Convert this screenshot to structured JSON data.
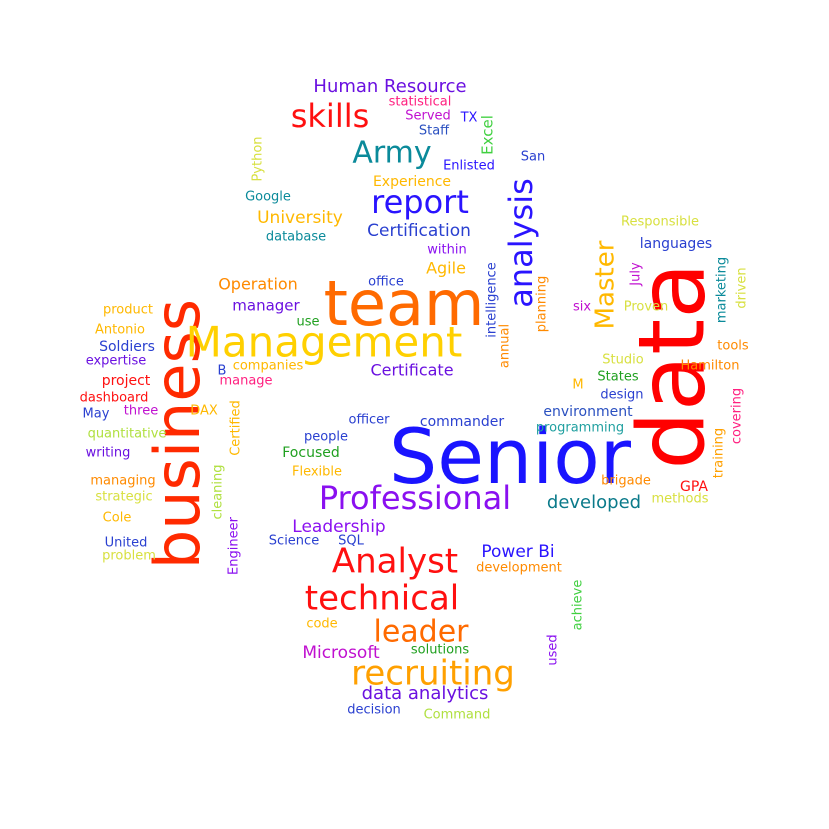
{
  "words": [
    {
      "text": "Senior",
      "color": "#1a14ff"
    },
    {
      "text": "data",
      "color": "#ff0000"
    },
    {
      "text": "team",
      "color": "#ff6a00"
    },
    {
      "text": "business",
      "color": "#ff2a00"
    },
    {
      "text": "Management",
      "color": "#ffd000"
    },
    {
      "text": "Professional",
      "color": "#8a10f0"
    },
    {
      "text": "technical",
      "color": "#ff1010"
    },
    {
      "text": "Analyst",
      "color": "#ff1010"
    },
    {
      "text": "recruiting",
      "color": "#ffa000"
    },
    {
      "text": "leader",
      "color": "#ff6a00"
    },
    {
      "text": "analysis",
      "color": "#2a14ff"
    },
    {
      "text": "report",
      "color": "#2a14ff"
    },
    {
      "text": "skills",
      "color": "#ff1010"
    },
    {
      "text": "Army",
      "color": "#0a8a9a"
    },
    {
      "text": "Master",
      "color": "#ffb800"
    },
    {
      "text": "data analytics",
      "color": "#6a10e0"
    },
    {
      "text": "Certification",
      "color": "#2a40d0"
    },
    {
      "text": "Human Resource",
      "color": "#6a10e0"
    },
    {
      "text": "University",
      "color": "#ffb800"
    },
    {
      "text": "Certificate",
      "color": "#6a10e0"
    },
    {
      "text": "Leadership",
      "color": "#8a10f0"
    },
    {
      "text": "developed",
      "color": "#0a7a8a"
    },
    {
      "text": "Power Bi",
      "color": "#2a14ff"
    },
    {
      "text": "Microsoft",
      "color": "#c010d0"
    },
    {
      "text": "Operation",
      "color": "#ff8a00"
    },
    {
      "text": "manager",
      "color": "#6a10e0"
    },
    {
      "text": "Agile",
      "color": "#ffb800"
    },
    {
      "text": "Excel",
      "color": "#40d040"
    },
    {
      "text": "Experience",
      "color": "#ffb800"
    },
    {
      "text": "environment",
      "color": "#2a50c0"
    },
    {
      "text": "languages",
      "color": "#2a40d0"
    },
    {
      "text": "Focused",
      "color": "#20a020"
    },
    {
      "text": "commander",
      "color": "#2a40d0"
    },
    {
      "text": "project",
      "color": "#ff1010"
    },
    {
      "text": "Soldiers",
      "color": "#2a40d0"
    },
    {
      "text": "development",
      "color": "#ff8a00"
    },
    {
      "text": "statistical",
      "color": "#ff2080"
    },
    {
      "text": "Served",
      "color": "#c010d0"
    },
    {
      "text": "TX",
      "color": "#2a14ff"
    },
    {
      "text": "Staff",
      "color": "#2a50c0"
    },
    {
      "text": "Enlisted",
      "color": "#2a14ff"
    },
    {
      "text": "San",
      "color": "#2a40d0"
    },
    {
      "text": "Python",
      "color": "#d8e040"
    },
    {
      "text": "Google",
      "color": "#0a8a9a"
    },
    {
      "text": "database",
      "color": "#0a8a9a"
    },
    {
      "text": "within",
      "color": "#8a10f0"
    },
    {
      "text": "intelligence",
      "color": "#2a40d0"
    },
    {
      "text": "annual",
      "color": "#ff8a00"
    },
    {
      "text": "planning",
      "color": "#ff8a00"
    },
    {
      "text": "office",
      "color": "#2a40d0"
    },
    {
      "text": "use",
      "color": "#20a020"
    },
    {
      "text": "product",
      "color": "#ffb800"
    },
    {
      "text": "Antonio",
      "color": "#ffb800"
    },
    {
      "text": "expertise",
      "color": "#6a10e0"
    },
    {
      "text": "B",
      "color": "#2a40d0"
    },
    {
      "text": "companies",
      "color": "#ffb800"
    },
    {
      "text": "manage",
      "color": "#ff2080"
    },
    {
      "text": "dashboard",
      "color": "#ff1010"
    },
    {
      "text": "May",
      "color": "#2a40d0"
    },
    {
      "text": "three",
      "color": "#c010d0"
    },
    {
      "text": "DAX",
      "color": "#ffb800"
    },
    {
      "text": "quantitative",
      "color": "#b0e040"
    },
    {
      "text": "writing",
      "color": "#6a10e0"
    },
    {
      "text": "managing",
      "color": "#ff8a00"
    },
    {
      "text": "strategic",
      "color": "#d8e040"
    },
    {
      "text": "Cole",
      "color": "#ffb800"
    },
    {
      "text": "United",
      "color": "#2a40d0"
    },
    {
      "text": "problem",
      "color": "#d8e040"
    },
    {
      "text": "Certified",
      "color": "#ffb800"
    },
    {
      "text": "cleaning",
      "color": "#b0e040"
    },
    {
      "text": "Engineer",
      "color": "#8a10f0"
    },
    {
      "text": "officer",
      "color": "#2a40d0"
    },
    {
      "text": "people",
      "color": "#2a40d0"
    },
    {
      "text": "Flexible",
      "color": "#ffb800"
    },
    {
      "text": "Science",
      "color": "#2a40d0"
    },
    {
      "text": "SQL",
      "color": "#2a40d0"
    },
    {
      "text": "code",
      "color": "#ffb800"
    },
    {
      "text": "solutions",
      "color": "#20a020"
    },
    {
      "text": "decision",
      "color": "#2a40d0"
    },
    {
      "text": "Command",
      "color": "#b0e040"
    },
    {
      "text": "used",
      "color": "#8a10f0"
    },
    {
      "text": "achieve",
      "color": "#40d040"
    },
    {
      "text": "Responsible",
      "color": "#d8e040"
    },
    {
      "text": "July",
      "color": "#c010d0"
    },
    {
      "text": "marketing",
      "color": "#0a8a9a"
    },
    {
      "text": "driven",
      "color": "#d8e040"
    },
    {
      "text": "six",
      "color": "#c010d0"
    },
    {
      "text": "Proven",
      "color": "#d8e040"
    },
    {
      "text": "tools",
      "color": "#ff8a00"
    },
    {
      "text": "Studio",
      "color": "#d8e040"
    },
    {
      "text": "Hamilton",
      "color": "#ff8a00"
    },
    {
      "text": "States",
      "color": "#20a020"
    },
    {
      "text": "M",
      "color": "#ffb800"
    },
    {
      "text": "design",
      "color": "#2a40d0"
    },
    {
      "text": "programming",
      "color": "#20a0a0"
    },
    {
      "text": "training",
      "color": "#ffa000"
    },
    {
      "text": "covering",
      "color": "#ff2080"
    },
    {
      "text": "GPA",
      "color": "#ff1010"
    },
    {
      "text": "brigade",
      "color": "#ff8a00"
    },
    {
      "text": "methods",
      "color": "#d8e040"
    }
  ]
}
